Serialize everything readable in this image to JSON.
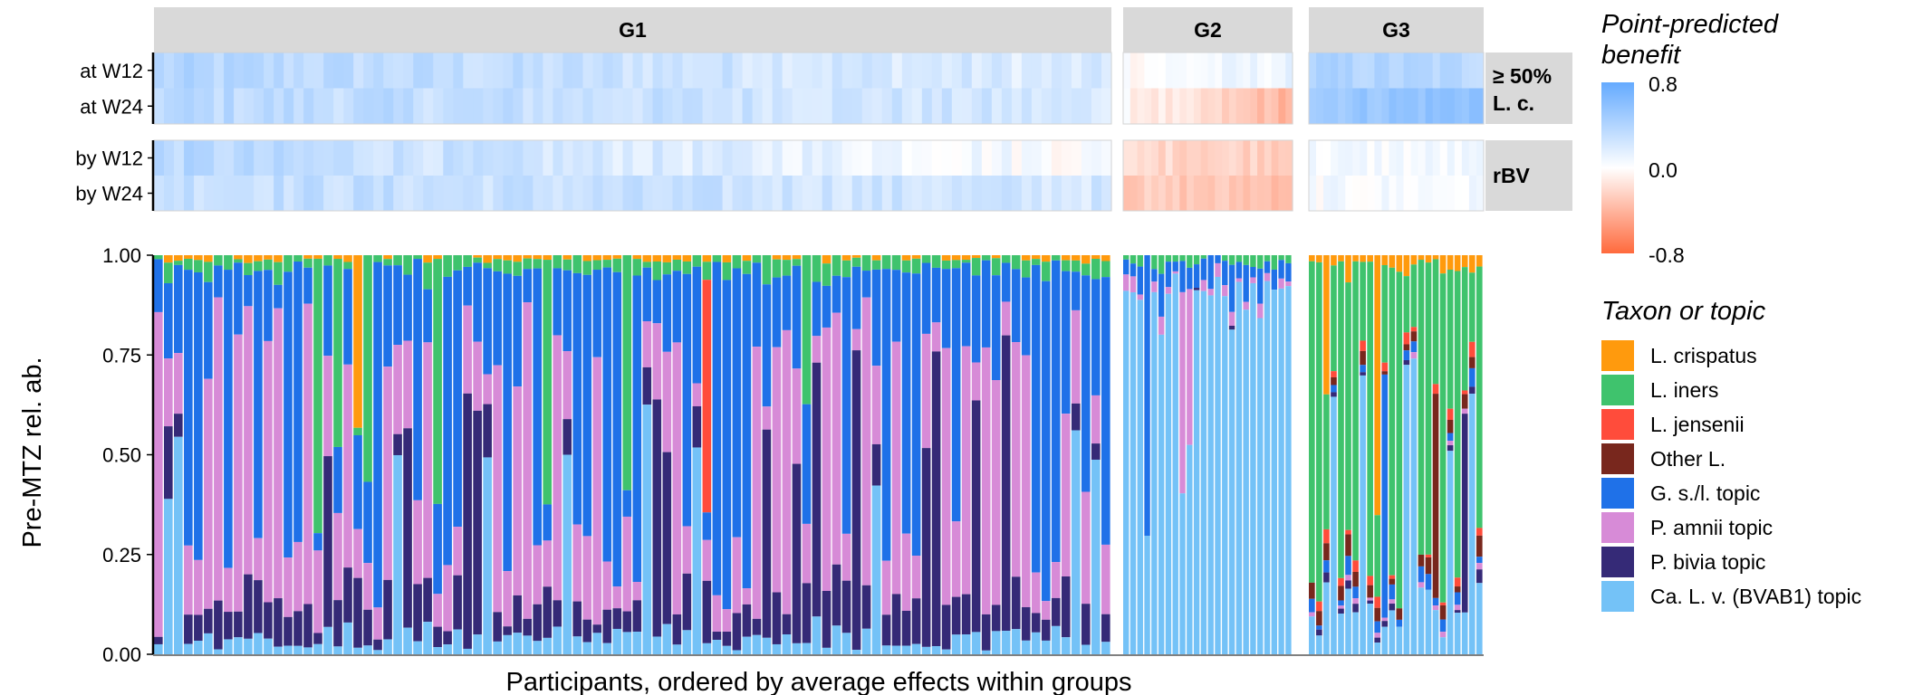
{
  "chart_data": {
    "type": "stacked-bar-with-heatmaps",
    "facets": [
      {
        "label": "G1",
        "n": 96
      },
      {
        "label": "G2",
        "n": 24
      },
      {
        "label": "G3",
        "n": 24
      }
    ],
    "heatmap_panels": [
      {
        "strip_label_line1": "≥ 50%",
        "strip_label_line2": "L. c.",
        "row_labels": [
          "at W12",
          "at W24"
        ]
      },
      {
        "strip_label_line1": "rBV",
        "strip_label_line2": "",
        "row_labels": [
          "by W12",
          "by W24"
        ]
      }
    ],
    "heatmap_levels": {
      "G1": {
        "mean": [
          0.27,
          0.28,
          0.19,
          0.27
        ],
        "spread": 0.1,
        "trend": [
          0.2,
          0.15,
          0.35,
          0.1
        ]
      },
      "G2": {
        "mean": [
          0.05,
          -0.22,
          -0.22,
          -0.3
        ],
        "spread": 0.08,
        "trend": [
          -0.1,
          0.35,
          0.05,
          0.05
        ]
      },
      "G3": {
        "mean": [
          0.38,
          0.55,
          0.05,
          0.04
        ],
        "spread": 0.08,
        "trend": [
          0.05,
          -0.1,
          0.0,
          0.0
        ]
      }
    },
    "ylabel": "Pre-MTZ rel. ab.",
    "xlabel": "Participants, ordered by average effects within groups",
    "yticks": [
      "1.00",
      "0.75",
      "0.50",
      "0.25",
      "0.00"
    ],
    "ylim": [
      0,
      1
    ],
    "composition_means": {
      "G1": [
        0.02,
        0.06,
        0.004,
        0.008,
        0.34,
        0.3,
        0.18,
        0.09
      ],
      "G2": [
        0.0,
        0.04,
        0.0,
        0.0,
        0.12,
        0.04,
        0.01,
        0.79
      ],
      "G3": [
        0.07,
        0.5,
        0.04,
        0.06,
        0.05,
        0.02,
        0.03,
        0.23
      ]
    },
    "color_scale": {
      "title_line1": "Point-predicted",
      "title_line2": "benefit",
      "max_label": "0.8",
      "mid_label": "0.0",
      "min_label": "-0.8",
      "max_value": 0.8,
      "min_value": -0.8,
      "high_color": "#64aaff",
      "mid_color": "#ffffff",
      "low_color": "#ff6a3d"
    },
    "legend": {
      "title": "Taxon or topic",
      "items": [
        {
          "name": "L. crispatus",
          "color": "#ff9a0d"
        },
        {
          "name": "L. iners",
          "color": "#3fc36d"
        },
        {
          "name": "L. jensenii",
          "color": "#ff4c3b"
        },
        {
          "name": "Other L.",
          "color": "#78271d"
        },
        {
          "name": "G. s./l. topic",
          "color": "#1f71e8"
        },
        {
          "name": "P. amnii topic",
          "color": "#d78bd7"
        },
        {
          "name": "P. bivia topic",
          "color": "#352a77"
        },
        {
          "name": "Ca. L. v. (BVAB1) topic",
          "color": "#74c2f7"
        }
      ]
    }
  }
}
